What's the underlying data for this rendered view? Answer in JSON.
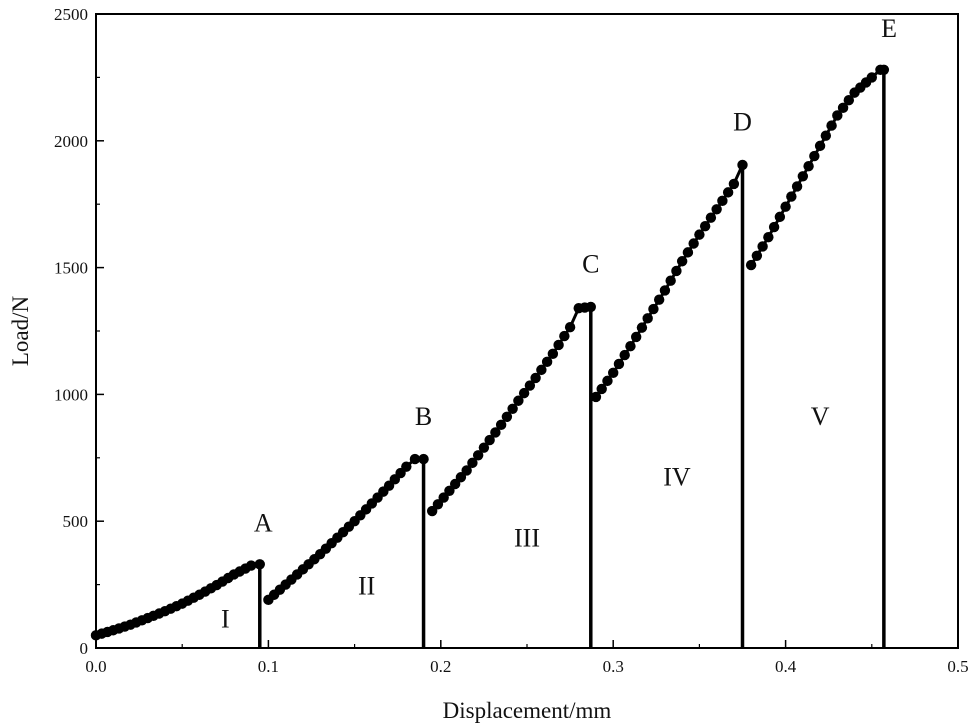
{
  "chart_data": {
    "type": "scatter",
    "xlabel": "Displacement/mm",
    "ylabel": "Load/N",
    "xlim": [
      0,
      0.5
    ],
    "ylim": [
      0,
      2500
    ],
    "xticks": [
      "0.0",
      "0.1",
      "0.2",
      "0.3",
      "0.4",
      "0.5"
    ],
    "yticks": [
      "0",
      "500",
      "1000",
      "1500",
      "2000",
      "2500"
    ],
    "grid": false,
    "segments": [
      {
        "x": [
          0.0,
          0.01,
          0.02,
          0.03,
          0.04,
          0.05,
          0.06,
          0.07,
          0.08,
          0.09,
          0.095
        ],
        "y": [
          50,
          70,
          92,
          118,
          145,
          175,
          210,
          248,
          290,
          325,
          330
        ],
        "drop_to": 0
      },
      {
        "x": [
          0.1,
          0.11,
          0.12,
          0.13,
          0.14,
          0.15,
          0.16,
          0.17,
          0.18,
          0.185,
          0.19
        ],
        "y": [
          190,
          250,
          310,
          370,
          435,
          500,
          570,
          640,
          715,
          745,
          745
        ],
        "drop_to": 0
      },
      {
        "x": [
          0.195,
          0.205,
          0.215,
          0.225,
          0.235,
          0.245,
          0.255,
          0.265,
          0.275,
          0.28,
          0.287
        ],
        "y": [
          540,
          620,
          700,
          790,
          880,
          975,
          1065,
          1160,
          1265,
          1340,
          1345
        ],
        "drop_to": 0
      },
      {
        "x": [
          0.29,
          0.3,
          0.31,
          0.32,
          0.33,
          0.34,
          0.35,
          0.36,
          0.37,
          0.375
        ],
        "y": [
          990,
          1085,
          1190,
          1300,
          1410,
          1525,
          1630,
          1730,
          1830,
          1905
        ],
        "drop_to": 0
      },
      {
        "x": [
          0.38,
          0.39,
          0.4,
          0.41,
          0.42,
          0.43,
          0.44,
          0.45,
          0.455,
          0.457
        ],
        "y": [
          1510,
          1620,
          1740,
          1860,
          1980,
          2100,
          2190,
          2250,
          2280,
          2280
        ],
        "drop_to": 0
      }
    ],
    "marker_spacing": 0.0035,
    "annotations": [
      {
        "text": "A",
        "x": 0.097,
        "y": 460
      },
      {
        "text": "B",
        "x": 0.19,
        "y": 880
      },
      {
        "text": "C",
        "x": 0.287,
        "y": 1480
      },
      {
        "text": "D",
        "x": 0.375,
        "y": 2040
      },
      {
        "text": "E",
        "x": 0.46,
        "y": 2410
      },
      {
        "text": "I",
        "x": 0.075,
        "y": 80
      },
      {
        "text": "II",
        "x": 0.157,
        "y": 210
      },
      {
        "text": "III",
        "x": 0.25,
        "y": 400
      },
      {
        "text": "IV",
        "x": 0.337,
        "y": 640
      },
      {
        "text": "V",
        "x": 0.42,
        "y": 880
      }
    ],
    "colors": {
      "line": "#000000",
      "axis": "#000000"
    }
  }
}
